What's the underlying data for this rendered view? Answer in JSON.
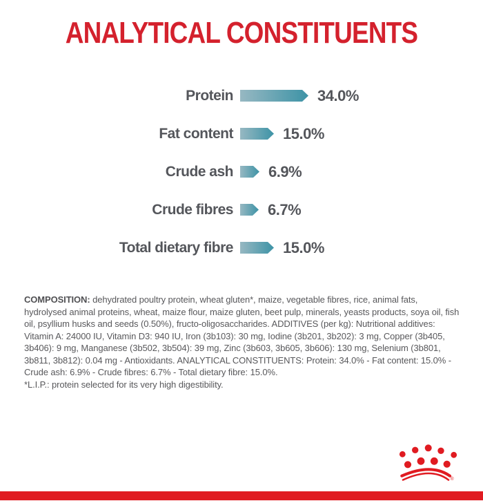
{
  "page": {
    "title": "ANALYTICAL CONSTITUENTS"
  },
  "colors": {
    "title_red": "#d4212d",
    "brand_red": "#e01b21",
    "bar_gradient_start": "#97b8c2",
    "bar_gradient_end": "#3d93a6",
    "text_gray": "#58585b",
    "label_gray": "#54565b"
  },
  "chart_data": {
    "type": "bar",
    "orientation": "horizontal",
    "title": "ANALYTICAL CONSTITUENTS",
    "unit": "%",
    "categories": [
      "Protein",
      "Fat content",
      "Crude ash",
      "Crude fibres",
      "Total dietary fibre"
    ],
    "values": [
      34.0,
      15.0,
      6.9,
      6.7,
      15.0
    ],
    "value_labels": [
      "34.0%",
      "15.0%",
      "6.9%",
      "6.7%",
      "15.0%"
    ],
    "xlim": [
      0,
      34
    ],
    "grid": false,
    "legend": false
  },
  "composition": {
    "heading": "COMPOSITION:",
    "body": "dehydrated poultry protein, wheat gluten*, maize, vegetable fibres, rice, animal fats, hydrolysed animal proteins, wheat, maize flour, maize gluten, beet pulp, minerals, yeasts products, soya oil, fish oil, psyllium husks and seeds (0.50%), fructo-oligosaccharides. ADDITIVES (per kg): Nutritional additives: Vitamin A: 24000 IU, Vitamin D3: 940 IU, Iron (3b103): 30 mg, Iodine (3b201, 3b202): 3 mg, Copper (3b405, 3b406): 9 mg, Manganese (3b502, 3b504): 39 mg, Zinc (3b603, 3b605, 3b606): 130 mg, Selenium (3b801, 3b811, 3b812): 0.04 mg - Antioxidants. ANALYTICAL CONSTITUENTS: Protein: 34.0% - Fat content: 15.0% - Crude ash: 6.9% - Crude fibres: 6.7% - Total dietary fibre: 15.0%.",
    "footnote": "*L.I.P.: protein selected for its very high digestibility."
  },
  "footer": {
    "logo": "royal-canin-crown",
    "registered_mark": "®"
  }
}
